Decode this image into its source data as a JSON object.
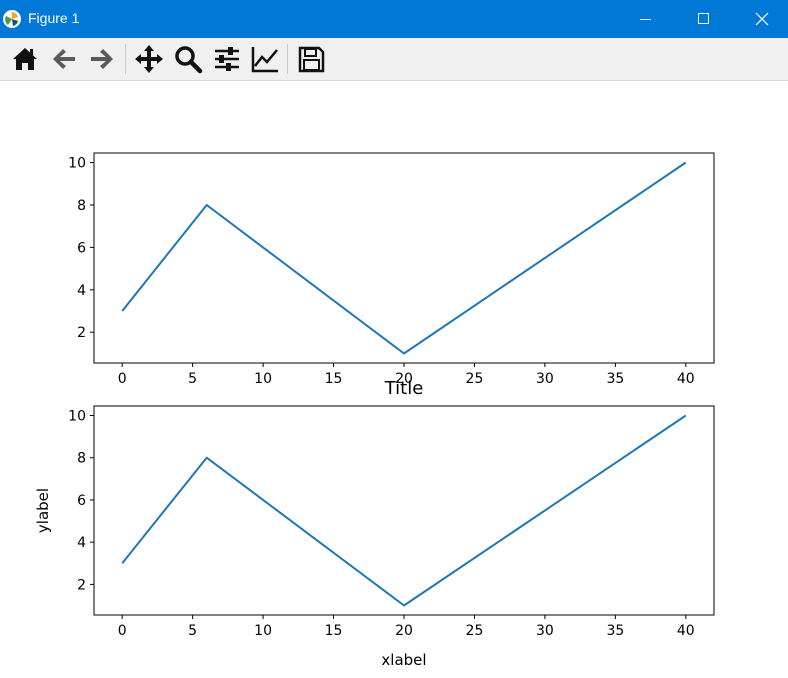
{
  "window": {
    "title": "Figure 1",
    "controls": [
      "minimize",
      "maximize",
      "close"
    ]
  },
  "toolbar": {
    "buttons": [
      {
        "name": "home",
        "icon": "home-icon"
      },
      {
        "name": "back",
        "icon": "arrow-left-icon"
      },
      {
        "name": "forward",
        "icon": "arrow-right-icon"
      },
      {
        "name": "pan",
        "icon": "move-icon"
      },
      {
        "name": "zoom",
        "icon": "magnifier-icon"
      },
      {
        "name": "configure-subplots",
        "icon": "sliders-icon"
      },
      {
        "name": "edit-axis",
        "icon": "line-chart-icon"
      },
      {
        "name": "save",
        "icon": "floppy-disk-icon"
      }
    ]
  },
  "colors": {
    "titlebar": "#0078d7",
    "line": "#1f77b4",
    "toolbar": "#f0f0f0"
  },
  "chart_data": [
    {
      "type": "line",
      "title": "",
      "xlabel": "",
      "ylabel": "",
      "x": [
        0,
        6,
        20,
        40
      ],
      "series": [
        {
          "values": [
            3,
            8,
            1,
            10
          ]
        }
      ],
      "xlim": [
        -2,
        42
      ],
      "ylim": [
        0.55,
        10.45
      ],
      "xticks": [
        0,
        5,
        10,
        15,
        20,
        25,
        30,
        35,
        40
      ],
      "yticks": [
        2,
        4,
        6,
        8,
        10
      ],
      "grid": false
    },
    {
      "type": "line",
      "title": "Title",
      "xlabel": "xlabel",
      "ylabel": "ylabel",
      "x": [
        0,
        6,
        20,
        40
      ],
      "series": [
        {
          "values": [
            3,
            8,
            1,
            10
          ]
        }
      ],
      "xlim": [
        -2,
        42
      ],
      "ylim": [
        0.55,
        10.45
      ],
      "xticks": [
        0,
        5,
        10,
        15,
        20,
        25,
        30,
        35,
        40
      ],
      "yticks": [
        2,
        4,
        6,
        8,
        10
      ],
      "grid": false
    }
  ]
}
